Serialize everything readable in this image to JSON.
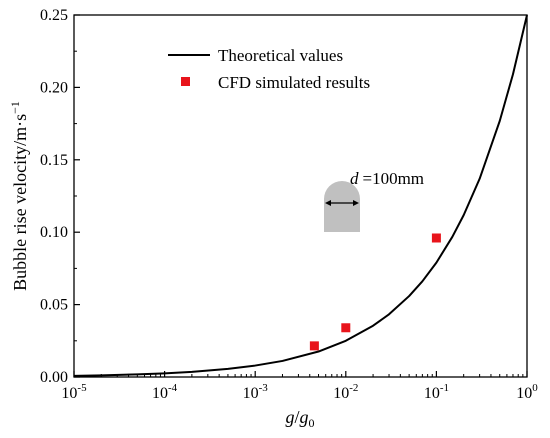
{
  "chart_data": {
    "type": "line",
    "xscale": "log",
    "xlim": [
      1e-05,
      1
    ],
    "ylim": [
      0,
      0.25
    ],
    "xlabel": {
      "base": "g",
      "slash": "/",
      "sub_base": "g",
      "sub": "0"
    },
    "ylabel": "Bubble rise velocity/m·s",
    "ylabel_sup": "−1",
    "x_ticks": [
      {
        "value": 1e-05,
        "base": "10",
        "exp": "-5"
      },
      {
        "value": 0.0001,
        "base": "10",
        "exp": "-4"
      },
      {
        "value": 0.001,
        "base": "10",
        "exp": "-3"
      },
      {
        "value": 0.01,
        "base": "10",
        "exp": "-2"
      },
      {
        "value": 0.1,
        "base": "10",
        "exp": "-1"
      },
      {
        "value": 1,
        "base": "10",
        "exp": "0"
      }
    ],
    "y_ticks": [
      {
        "value": 0.0,
        "label": "0.00"
      },
      {
        "value": 0.05,
        "label": "0.05"
      },
      {
        "value": 0.1,
        "label": "0.10"
      },
      {
        "value": 0.15,
        "label": "0.15"
      },
      {
        "value": 0.2,
        "label": "0.20"
      },
      {
        "value": 0.25,
        "label": "0.25"
      }
    ],
    "series": [
      {
        "name": "Theoretical values",
        "kind": "line",
        "color": "#000000",
        "x": [
          1e-05,
          2e-05,
          5e-05,
          0.0001,
          0.0002,
          0.0005,
          0.001,
          0.002,
          0.005,
          0.01,
          0.02,
          0.03,
          0.05,
          0.07,
          0.1,
          0.15,
          0.2,
          0.3,
          0.5,
          0.7,
          1.0
        ],
        "y": [
          0.0008,
          0.0011,
          0.0018,
          0.0025,
          0.0035,
          0.0056,
          0.0079,
          0.0111,
          0.0176,
          0.025,
          0.0354,
          0.0433,
          0.0559,
          0.0661,
          0.079,
          0.0968,
          0.1118,
          0.1369,
          0.1768,
          0.2091,
          0.25
        ]
      },
      {
        "name": "CFD simulated results",
        "kind": "scatter",
        "color": "#e8141b",
        "marker": "square",
        "x": [
          0.0045,
          0.01,
          0.1
        ],
        "y": [
          0.0215,
          0.034,
          0.096
        ]
      }
    ],
    "legend": {
      "position": "top-center"
    },
    "annotation": {
      "var": "d",
      "text": "=100mm",
      "shape_color": "#c0c0c0"
    }
  }
}
